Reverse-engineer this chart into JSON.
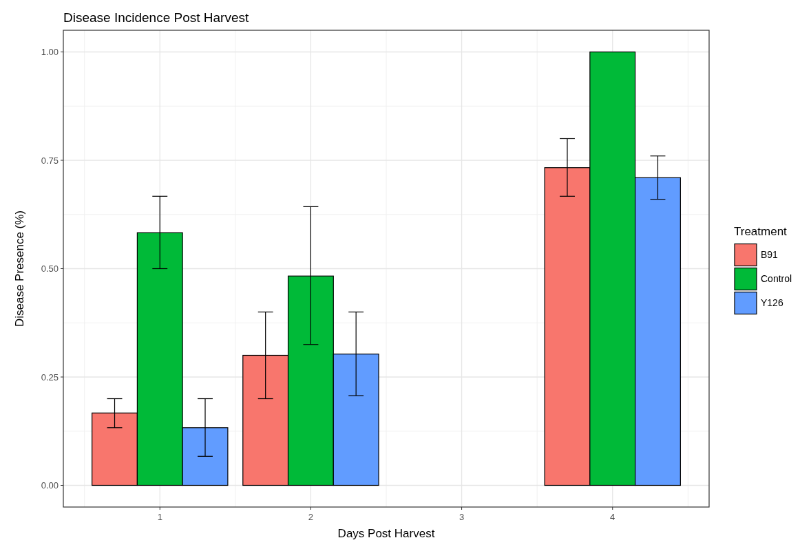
{
  "chart_data": {
    "type": "bar",
    "title": "Disease Incidence Post Harvest",
    "xlabel": "Days Post Harvest",
    "ylabel": "Disease Presence (%)",
    "legend_title": "Treatment",
    "x": [
      1,
      2,
      4
    ],
    "series": [
      {
        "name": "B91",
        "color": "#f8766d",
        "values": [
          0.167,
          0.3,
          0.733
        ],
        "errors": [
          [
            0.133,
            0.2
          ],
          [
            0.2,
            0.4
          ],
          [
            0.667,
            0.8
          ]
        ]
      },
      {
        "name": "Control",
        "color": "#00ba38",
        "values": [
          0.583,
          0.483,
          1.0
        ],
        "errors": [
          [
            0.5,
            0.667
          ],
          [
            0.325,
            0.643
          ],
          null
        ]
      },
      {
        "name": "Y126",
        "color": "#619cff",
        "values": [
          0.133,
          0.303,
          0.71
        ],
        "errors": [
          [
            0.067,
            0.2
          ],
          [
            0.207,
            0.4
          ],
          [
            0.66,
            0.76
          ]
        ]
      }
    ],
    "xlim": [
      0.36,
      4.64
    ],
    "xticks": [
      1,
      2,
      3,
      4
    ],
    "ylim": [
      -0.05,
      1.05
    ],
    "yticks": [
      {
        "value": 0,
        "label": "0.00"
      },
      {
        "value": 0.25,
        "label": "0.25"
      },
      {
        "value": 0.5,
        "label": "0.50"
      },
      {
        "value": 0.75,
        "label": "0.75"
      },
      {
        "value": 1,
        "label": "1.00"
      }
    ],
    "grid": true,
    "legend": "right"
  }
}
